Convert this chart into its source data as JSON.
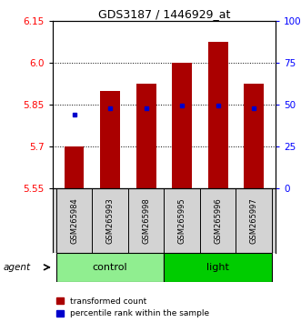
{
  "title": "GDS3187 / 1446929_at",
  "samples": [
    "GSM265984",
    "GSM265993",
    "GSM265998",
    "GSM265995",
    "GSM265996",
    "GSM265997"
  ],
  "groups": [
    "control",
    "control",
    "control",
    "light",
    "light",
    "light"
  ],
  "control_color": "#90EE90",
  "light_color": "#00CC00",
  "bar_bottoms": [
    5.55,
    5.55,
    5.55,
    5.55,
    5.55,
    5.55
  ],
  "bar_tops": [
    5.7,
    5.9,
    5.925,
    6.0,
    6.075,
    5.925
  ],
  "percentile_values": [
    5.815,
    5.838,
    5.838,
    5.847,
    5.848,
    5.838
  ],
  "ylim": [
    5.55,
    6.15
  ],
  "yticks_left": [
    5.55,
    5.7,
    5.85,
    6.0,
    6.15
  ],
  "yticks_right": [
    0,
    25,
    50,
    75,
    100
  ],
  "ytick_right_labels": [
    "0",
    "25",
    "50",
    "75",
    "100%"
  ],
  "bar_color": "#AA0000",
  "percentile_color": "#0000CC",
  "bar_width": 0.55,
  "legend_bar_label": "transformed count",
  "legend_pct_label": "percentile rank within the sample",
  "background_color": "#ffffff",
  "grid_yticks": [
    5.7,
    5.85,
    6.0
  ]
}
